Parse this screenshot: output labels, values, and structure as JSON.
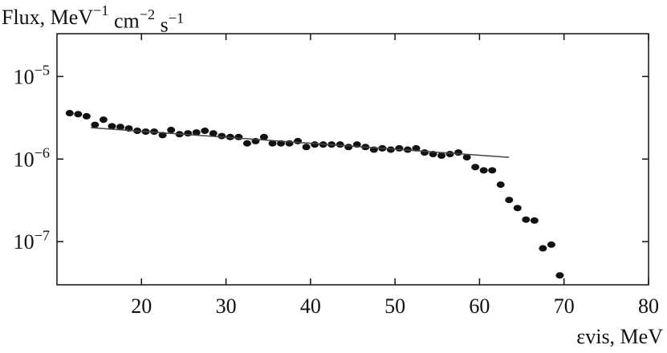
{
  "chart_data": {
    "type": "scatter",
    "title": "Flux, MeV−1 cm−2 s−1",
    "x_label": "εvis, MeV",
    "log_y": true,
    "xlim": [
      10,
      80
    ],
    "xticks": [
      20,
      30,
      40,
      50,
      60,
      70,
      80
    ],
    "ylim": [
      3e-08,
      3.3e-05
    ],
    "yticks": [
      {
        "value": 1e-07,
        "label": "10−7"
      },
      {
        "value": 1e-06,
        "label": "10−6"
      },
      {
        "value": 1e-05,
        "label": "10−5"
      }
    ],
    "series": [
      {
        "type": "scatter",
        "color": "#111111",
        "x": [
          11.5,
          12.5,
          13.5,
          14.5,
          15.5,
          16.5,
          17.5,
          18.5,
          19.5,
          20.5,
          21.5,
          22.5,
          23.5,
          24.5,
          25.5,
          26.5,
          27.5,
          28.5,
          29.5,
          30.5,
          31.5,
          32.5,
          33.5,
          34.5,
          35.5,
          36.5,
          37.5,
          38.5,
          39.5,
          40.5,
          41.5,
          42.5,
          43.5,
          44.5,
          45.5,
          46.5,
          47.5,
          48.5,
          49.5,
          50.5,
          51.5,
          52.5,
          53.5,
          54.5,
          55.5,
          56.5,
          57.5,
          58.5,
          59.5,
          60.5,
          61.5,
          62.5,
          63.5,
          64.5,
          65.5,
          66.5,
          67.5,
          68.5,
          69.5
        ],
        "values": [
          3.6e-06,
          3.5e-06,
          3.3e-06,
          2.6e-06,
          3e-06,
          2.5e-06,
          2.45e-06,
          2.35e-06,
          2.2e-06,
          2.15e-06,
          2.15e-06,
          1.95e-06,
          2.25e-06,
          2e-06,
          2.05e-06,
          2.1e-06,
          2.2e-06,
          2.05e-06,
          1.9e-06,
          1.85e-06,
          1.85e-06,
          1.55e-06,
          1.65e-06,
          1.85e-06,
          1.55e-06,
          1.55e-06,
          1.55e-06,
          1.65e-06,
          1.4e-06,
          1.5e-06,
          1.5e-06,
          1.5e-06,
          1.5e-06,
          1.4e-06,
          1.5e-06,
          1.4e-06,
          1.3e-06,
          1.35e-06,
          1.3e-06,
          1.35e-06,
          1.3e-06,
          1.35e-06,
          1.2e-06,
          1.15e-06,
          1.1e-06,
          1.15e-06,
          1.2e-06,
          1.05e-06,
          8e-07,
          7.3e-07,
          7.3e-07,
          4.9e-07,
          3.2e-07,
          2.55e-07,
          1.85e-07,
          1.8e-07,
          8.3e-08,
          9.2e-08,
          3.9e-08
        ]
      },
      {
        "type": "line",
        "color": "#444444",
        "x": [
          14,
          63.5
        ],
        "values": [
          2.4e-06,
          1.05e-06
        ]
      }
    ]
  }
}
